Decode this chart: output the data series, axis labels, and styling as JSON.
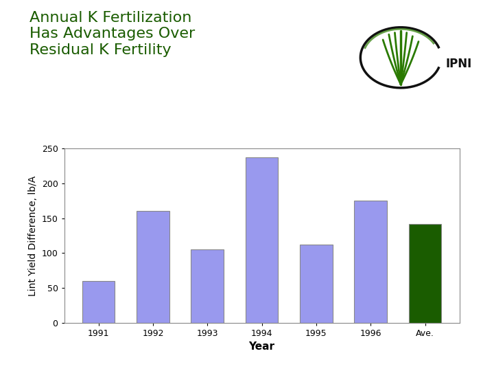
{
  "categories": [
    "1991",
    "1992",
    "1993",
    "1994",
    "1995",
    "1996",
    "Ave."
  ],
  "values": [
    60,
    160,
    105,
    237,
    112,
    175,
    142
  ],
  "bar_colors": [
    "#9999ee",
    "#9999ee",
    "#9999ee",
    "#9999ee",
    "#9999ee",
    "#9999ee",
    "#1a5c00"
  ],
  "title_line1": "Annual K Fertilization",
  "title_line2": "Has Advantages Over",
  "title_line3": "Residual K Fertility",
  "title_color": "#1a5c00",
  "title_fontsize": 16,
  "xlabel": "Year",
  "ylabel": "Lint Yield Difference, lb/A",
  "ylim": [
    0,
    250
  ],
  "yticks": [
    0,
    50,
    100,
    150,
    200,
    250
  ],
  "background_color": "#ffffff",
  "bar_edgecolor": "#888888",
  "bar_width": 0.6,
  "axis_fontsize": 10,
  "tick_fontsize": 9,
  "xlabel_fontsize": 11
}
